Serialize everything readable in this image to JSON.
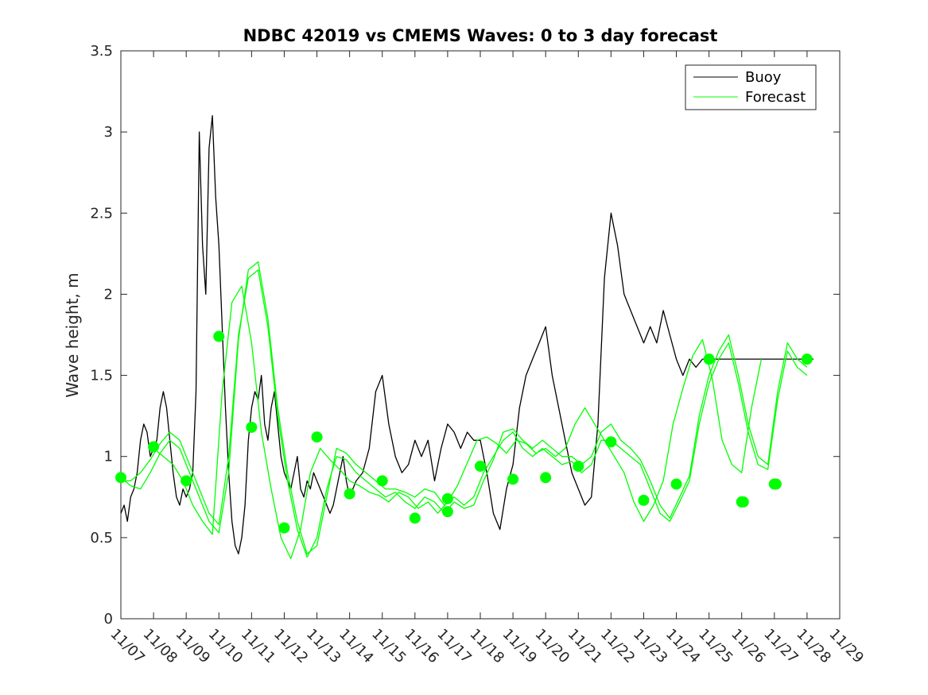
{
  "chart_data": {
    "type": "line",
    "title": "NDBC 42019 vs CMEMS Waves: 0 to 3 day forecast",
    "xlabel": "",
    "ylabel": "Wave height, m",
    "xlim": [
      "11/07",
      "11/29"
    ],
    "ylim": [
      0,
      3.5
    ],
    "grid": false,
    "legend_position": "top-right",
    "x_ticks": [
      "11/07",
      "11/08",
      "11/09",
      "11/10",
      "11/11",
      "11/12",
      "11/13",
      "11/14",
      "11/15",
      "11/16",
      "11/17",
      "11/18",
      "11/19",
      "11/20",
      "11/21",
      "11/22",
      "11/23",
      "11/24",
      "11/25",
      "11/26",
      "11/27",
      "11/28",
      "11/29"
    ],
    "y_ticks": [
      "0",
      "0.5",
      "1",
      "1.5",
      "2",
      "2.5",
      "3",
      "3.5"
    ],
    "colors": {
      "buoy": "#000000",
      "forecast": "#00ff00"
    },
    "series": [
      {
        "name": "Buoy",
        "x": [
          0,
          0.1,
          0.2,
          0.3,
          0.4,
          0.5,
          0.6,
          0.7,
          0.8,
          0.9,
          1.0,
          1.1,
          1.2,
          1.3,
          1.4,
          1.5,
          1.6,
          1.7,
          1.8,
          1.9,
          2.0,
          2.1,
          2.2,
          2.3,
          2.4,
          2.5,
          2.6,
          2.7,
          2.8,
          2.9,
          3.0,
          3.1,
          3.2,
          3.3,
          3.4,
          3.5,
          3.6,
          3.7,
          3.8,
          3.9,
          4.0,
          4.1,
          4.2,
          4.3,
          4.4,
          4.5,
          4.6,
          4.7,
          4.8,
          4.9,
          5.0,
          5.1,
          5.2,
          5.3,
          5.4,
          5.5,
          5.6,
          5.7,
          5.8,
          5.9,
          6.0,
          6.1,
          6.2,
          6.3,
          6.4,
          6.5,
          6.6,
          6.7,
          6.8,
          6.9,
          7.0,
          7.2,
          7.4,
          7.6,
          7.8,
          8.0,
          8.2,
          8.4,
          8.6,
          8.8,
          9.0,
          9.2,
          9.4,
          9.6,
          9.8,
          10.0,
          10.2,
          10.4,
          10.6,
          10.8,
          11.0,
          11.2,
          11.4,
          11.6,
          11.8,
          12.0,
          12.2,
          12.4,
          12.6,
          12.8,
          13.0,
          13.2,
          13.4,
          13.6,
          13.8,
          14.0,
          14.2,
          14.4,
          14.6,
          14.8,
          15.0,
          15.2,
          15.4,
          15.6,
          15.8,
          16.0,
          16.2,
          16.4,
          16.6,
          16.8,
          17.0,
          17.2,
          17.4,
          17.6,
          17.8,
          18.0,
          18.2,
          18.4,
          18.6,
          18.8,
          19.0,
          19.2,
          19.4,
          19.6,
          19.8,
          20.0,
          20.2,
          20.4,
          20.6,
          20.8,
          21.0,
          21.2
        ],
        "values": [
          0.65,
          0.7,
          0.6,
          0.75,
          0.8,
          0.9,
          1.1,
          1.2,
          1.15,
          1.0,
          1.05,
          1.1,
          1.3,
          1.4,
          1.3,
          1.1,
          0.9,
          0.75,
          0.7,
          0.8,
          0.75,
          0.8,
          0.9,
          1.4,
          3.0,
          2.3,
          2.0,
          2.9,
          3.1,
          2.6,
          2.3,
          1.8,
          1.3,
          0.9,
          0.6,
          0.45,
          0.4,
          0.5,
          0.7,
          1.1,
          1.3,
          1.4,
          1.35,
          1.5,
          1.2,
          1.1,
          1.3,
          1.4,
          1.2,
          1.0,
          0.9,
          0.85,
          0.8,
          0.9,
          1.0,
          0.8,
          0.75,
          0.85,
          0.8,
          0.9,
          0.85,
          0.8,
          0.75,
          0.7,
          0.65,
          0.7,
          0.8,
          0.9,
          1.0,
          0.85,
          0.75,
          0.85,
          0.9,
          1.05,
          1.4,
          1.5,
          1.2,
          1.0,
          0.9,
          0.95,
          1.1,
          1.0,
          1.1,
          0.85,
          1.05,
          1.2,
          1.15,
          1.05,
          1.15,
          1.1,
          1.1,
          0.9,
          0.65,
          0.55,
          0.8,
          0.95,
          1.3,
          1.5,
          1.6,
          1.7,
          1.8,
          1.5,
          1.3,
          1.1,
          0.9,
          0.8,
          0.7,
          0.75,
          1.2,
          2.1,
          2.5,
          2.3,
          2.0,
          1.9,
          1.8,
          1.7,
          1.8,
          1.7,
          1.9,
          1.75,
          1.6,
          1.5,
          1.6,
          1.55,
          1.6,
          1.6,
          1.6,
          1.6,
          1.6,
          1.6,
          1.6,
          1.6,
          1.6,
          1.6,
          1.6,
          1.6,
          1.6,
          1.6,
          1.6,
          1.6,
          1.6,
          1.6
        ]
      },
      {
        "name": "Forecast",
        "x": [
          0,
          0.3,
          0.6,
          0.9,
          1.2,
          1.5,
          1.8,
          2.1,
          2.4,
          2.7,
          3.0,
          3.3,
          3.6,
          3.9,
          4.2,
          4.5,
          4.8,
          5.1,
          5.4,
          5.7,
          6.0,
          6.3,
          6.6,
          6.9,
          7.2,
          7.5,
          7.8,
          8.1,
          8.4,
          8.7,
          9.0,
          9.3,
          9.6,
          9.9,
          10.2,
          10.5,
          10.8,
          11.1,
          11.4,
          11.7,
          12.0,
          12.3,
          12.6,
          12.9,
          13.2,
          13.5,
          13.8,
          14.1,
          14.4,
          14.7,
          15.0,
          15.3,
          15.6,
          15.9,
          16.2,
          16.5,
          16.8,
          17.1,
          17.4,
          17.7,
          18.0,
          18.3,
          18.6,
          18.9,
          19.2,
          19.5,
          19.8,
          20.1,
          20.4,
          20.7,
          21.0
        ],
        "values": [
          0.87,
          0.82,
          0.8,
          0.9,
          1.02,
          1.1,
          1.05,
          0.9,
          0.75,
          0.6,
          0.53,
          0.9,
          1.72,
          2.15,
          2.2,
          1.85,
          1.3,
          0.9,
          0.6,
          0.4,
          0.45,
          0.75,
          1.05,
          1.02,
          0.95,
          0.9,
          0.85,
          0.8,
          0.8,
          0.78,
          0.75,
          0.8,
          0.78,
          0.7,
          0.75,
          0.7,
          0.75,
          0.9,
          1.0,
          1.1,
          1.15,
          1.05,
          1.0,
          1.05,
          1.0,
          0.95,
          0.97,
          0.9,
          0.95,
          1.1,
          1.1,
          1.05,
          1.0,
          0.95,
          0.8,
          0.65,
          0.6,
          0.72,
          0.85,
          1.2,
          1.45,
          1.6,
          1.7,
          1.45,
          1.15,
          0.95,
          0.92,
          1.35,
          1.65,
          1.55,
          1.5
        ]
      },
      {
        "name": "",
        "x": [
          0,
          0.3,
          0.6,
          0.9,
          1.2,
          1.5,
          1.8,
          2.1,
          2.4,
          2.7,
          3.0,
          3.3,
          3.6,
          3.9,
          4.2,
          4.5,
          4.8,
          5.1,
          5.4,
          5.7,
          6.0,
          6.3,
          6.6,
          6.9,
          7.2,
          7.5,
          7.8,
          8.1,
          8.4,
          8.7,
          9.0,
          9.3,
          9.6,
          9.9,
          10.2,
          10.5,
          10.8,
          11.1,
          11.4,
          11.7,
          12.0,
          12.3,
          12.6,
          12.9,
          13.2,
          13.5,
          13.8,
          14.1,
          14.4,
          14.7,
          15.0,
          15.3,
          15.6,
          15.9,
          16.2,
          16.5,
          16.8,
          17.1,
          17.4,
          17.7,
          18.0,
          18.3,
          18.6,
          18.9,
          19.2,
          19.5,
          19.8,
          20.1,
          20.4,
          20.7,
          21.0
        ],
        "values": [
          0.85,
          0.85,
          0.9,
          0.98,
          1.08,
          1.15,
          1.1,
          0.95,
          0.8,
          0.65,
          0.58,
          1.0,
          1.75,
          2.1,
          2.15,
          1.8,
          1.25,
          0.85,
          0.55,
          0.38,
          0.5,
          0.8,
          1.0,
          0.98,
          0.9,
          0.85,
          0.8,
          0.75,
          0.78,
          0.72,
          0.68,
          0.75,
          0.72,
          0.65,
          0.72,
          0.68,
          0.7,
          0.85,
          0.98,
          1.15,
          1.17,
          1.1,
          1.05,
          1.1,
          1.05,
          1.0,
          1.0,
          0.95,
          1.0,
          1.15,
          1.2,
          1.1,
          1.05,
          0.98,
          0.85,
          0.7,
          0.62,
          0.75,
          0.88,
          1.25,
          1.5,
          1.65,
          1.75,
          1.5,
          1.2,
          1.0,
          0.95,
          1.4,
          1.7,
          1.6,
          1.55
        ]
      },
      {
        "name": "",
        "x": [
          1.0,
          1.3,
          1.6,
          1.9,
          2.2,
          2.5,
          2.8,
          3.1,
          3.4,
          3.7,
          4.0,
          4.3,
          4.6,
          4.9,
          5.2,
          5.5,
          5.8,
          6.1,
          6.4,
          6.7,
          7.0,
          7.3,
          7.6,
          7.9,
          8.2,
          8.5,
          8.8,
          9.1,
          9.4,
          9.7,
          10.0,
          10.3,
          10.6,
          10.9,
          11.2,
          11.5,
          11.8,
          12.1,
          12.4,
          12.7,
          13.0,
          13.3,
          13.6,
          13.9,
          14.2,
          14.5,
          14.8,
          15.1,
          15.4,
          15.7,
          16.0,
          16.3,
          16.6,
          16.9,
          17.2,
          17.5,
          17.8,
          18.1,
          18.4,
          18.7,
          19.0,
          19.3,
          19.6
        ],
        "values": [
          1.05,
          1.0,
          0.95,
          0.85,
          0.7,
          0.6,
          0.52,
          1.4,
          1.95,
          2.05,
          1.7,
          1.15,
          0.8,
          0.5,
          0.37,
          0.55,
          0.9,
          1.05,
          0.98,
          0.92,
          0.85,
          0.82,
          0.78,
          0.76,
          0.72,
          0.78,
          0.75,
          0.68,
          0.72,
          0.65,
          0.72,
          0.82,
          0.96,
          1.1,
          1.12,
          1.08,
          1.02,
          1.1,
          1.08,
          1.02,
          1.05,
          1.0,
          1.05,
          1.2,
          1.3,
          1.2,
          1.1,
          1.0,
          0.9,
          0.72,
          0.6,
          0.7,
          0.85,
          1.2,
          1.42,
          1.62,
          1.72,
          1.48,
          1.1,
          0.95,
          0.9,
          1.3,
          1.6
        ]
      }
    ],
    "markers": {
      "name": "",
      "x": [
        0,
        1,
        2,
        3,
        4,
        5,
        6,
        7,
        8,
        9,
        10,
        10,
        11,
        12,
        13,
        14,
        15,
        16,
        17,
        18,
        19,
        19.05,
        20,
        20.05,
        21
      ],
      "values": [
        0.87,
        1.06,
        0.85,
        1.74,
        1.18,
        0.56,
        1.12,
        0.77,
        0.85,
        0.62,
        0.66,
        0.74,
        0.94,
        0.86,
        0.87,
        0.94,
        1.09,
        0.73,
        0.83,
        1.6,
        0.72,
        0.72,
        0.83,
        0.83,
        1.6
      ]
    }
  }
}
